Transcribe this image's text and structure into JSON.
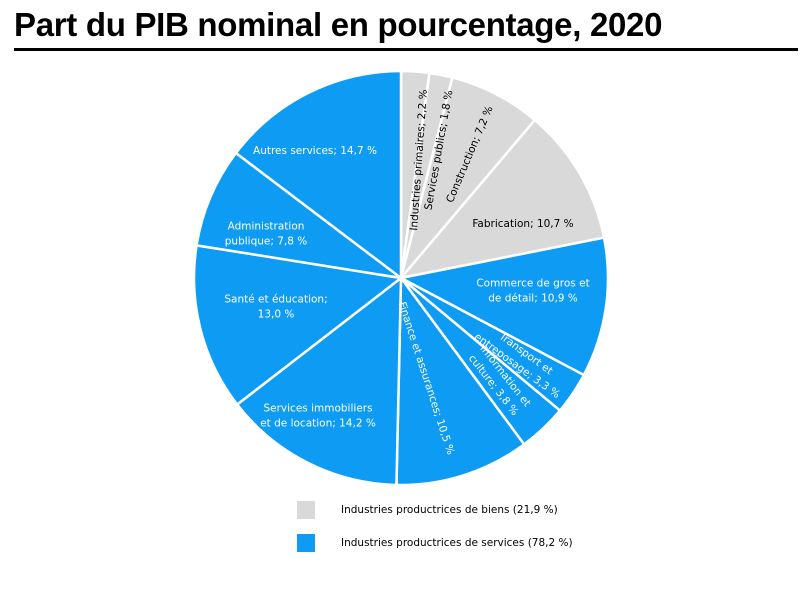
{
  "header": {
    "title": "Part du PIB nominal en pourcentage, 2020"
  },
  "colors": {
    "biens": "#d9d9d9",
    "services": "#0d9bf4",
    "separator": "#ffffff",
    "label_on_biens": "#000000",
    "label_on_services": "#ffffff"
  },
  "chart_data": {
    "type": "pie",
    "title": "Part du PIB nominal en pourcentage, 2020",
    "start": "12 o'clock",
    "direction": "clockwise",
    "slices": [
      {
        "label": "Industries primaires; 2,2 %",
        "value": 2.2,
        "group": "biens"
      },
      {
        "label": "Services publics; 1,8 %",
        "value": 1.8,
        "group": "biens"
      },
      {
        "label": "Construction; 7,2 %",
        "value": 7.2,
        "group": "biens"
      },
      {
        "label": "Fabrication; 10,7 %",
        "value": 10.7,
        "group": "biens"
      },
      {
        "label": "Commerce de gros et de détail; 10,9 %",
        "value": 10.9,
        "group": "services"
      },
      {
        "label": "Transport et entreposage; 3,3 %",
        "value": 3.3,
        "group": "services"
      },
      {
        "label": "Information et culture; 3,8 %",
        "value": 3.8,
        "group": "services"
      },
      {
        "label": "Finance et assurances; 10,5 %",
        "value": 10.5,
        "group": "services"
      },
      {
        "label": "Services immobiliers et de location; 14,2 %",
        "value": 14.2,
        "group": "services"
      },
      {
        "label": "Santé et éducation; 13,0 %",
        "value": 13.0,
        "group": "services"
      },
      {
        "label": "Administration publique; 7,8 %",
        "value": 7.8,
        "group": "services"
      },
      {
        "label": "Autres services; 14,7 %",
        "value": 14.7,
        "group": "services"
      }
    ],
    "legend": {
      "placement": "bottom-center",
      "items": [
        {
          "label": "Industries productrices de biens (21,9 %)",
          "group": "biens"
        },
        {
          "label": "Industries productrices de services (78,2 %)",
          "group": "services"
        }
      ]
    }
  }
}
